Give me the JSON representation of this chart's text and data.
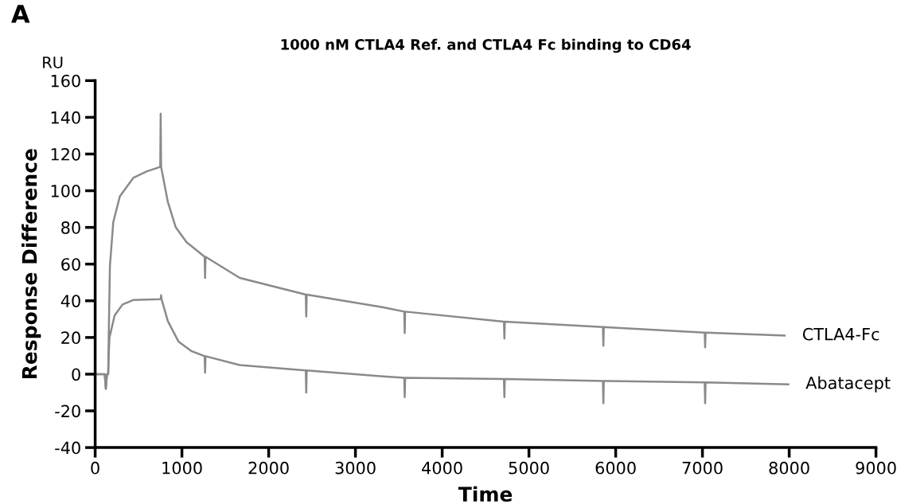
{
  "chart_data": {
    "type": "line",
    "title": "1000 nM CTLA4 Ref. and CTLA4 Fc binding to CD64",
    "xlabel": "Time",
    "ylabel": "Response Difference",
    "annotations": [
      "A",
      "RU"
    ],
    "xlim": [
      0,
      9000
    ],
    "xticks": [
      0,
      1000,
      2000,
      3000,
      4000,
      5000,
      6000,
      7000,
      8000,
      9000
    ],
    "ylim": [
      -40,
      160
    ],
    "yticks": [
      -40,
      -20,
      0,
      20,
      40,
      60,
      80,
      100,
      120,
      140,
      160
    ],
    "grid": false,
    "legend": false,
    "marker": "none",
    "line_style": "solid",
    "series": [
      {
        "name": "CTLA4-Fc",
        "color": "#8a8a8a",
        "x": [
          0,
          110,
          123,
          136,
          150,
          156,
          170,
          209,
          285,
          439,
          592,
          750,
          755,
          760,
          837,
          929,
          1052,
          1262,
          1267,
          1272,
          1666,
          2428,
          2433,
          2438,
          3321,
          3563,
          3568,
          3573,
          4712,
          4717,
          4722,
          5853,
          5858,
          5863,
          7026,
          7031,
          7036,
          7948
        ],
        "values": [
          0,
          0,
          -8,
          0,
          0,
          20,
          59,
          83,
          97,
          107,
          110.5,
          113,
          142,
          113,
          94,
          80,
          72,
          64,
          52.5,
          64,
          52.5,
          43.4,
          31.4,
          43.4,
          36.4,
          34.1,
          22.4,
          34.1,
          28.6,
          19.4,
          28.6,
          25.7,
          15.5,
          25.7,
          22.7,
          14.6,
          22.7,
          21
        ]
      },
      {
        "name": "Abatacept",
        "color": "#8a8a8a",
        "x": [
          0,
          110,
          123,
          136,
          150,
          156,
          165,
          224,
          316,
          439,
          755,
          760,
          765,
          837,
          960,
          1113,
          1262,
          1267,
          1272,
          1666,
          2428,
          2433,
          2438,
          3321,
          3563,
          3568,
          3573,
          4712,
          4717,
          4722,
          5853,
          5858,
          5863,
          7026,
          7031,
          7036,
          7989
        ],
        "values": [
          0,
          0,
          -8,
          0,
          0,
          10,
          20,
          32,
          38,
          40.4,
          40.9,
          43,
          40.9,
          29,
          17.8,
          12.5,
          9.8,
          0.8,
          9.8,
          5,
          2,
          -10,
          2,
          -1.2,
          -2,
          -12.5,
          -2,
          -2.6,
          -12.5,
          -2.6,
          -3.7,
          -15.9,
          -3.7,
          -4.5,
          -15.9,
          -4.5,
          -5.5
        ]
      }
    ]
  }
}
